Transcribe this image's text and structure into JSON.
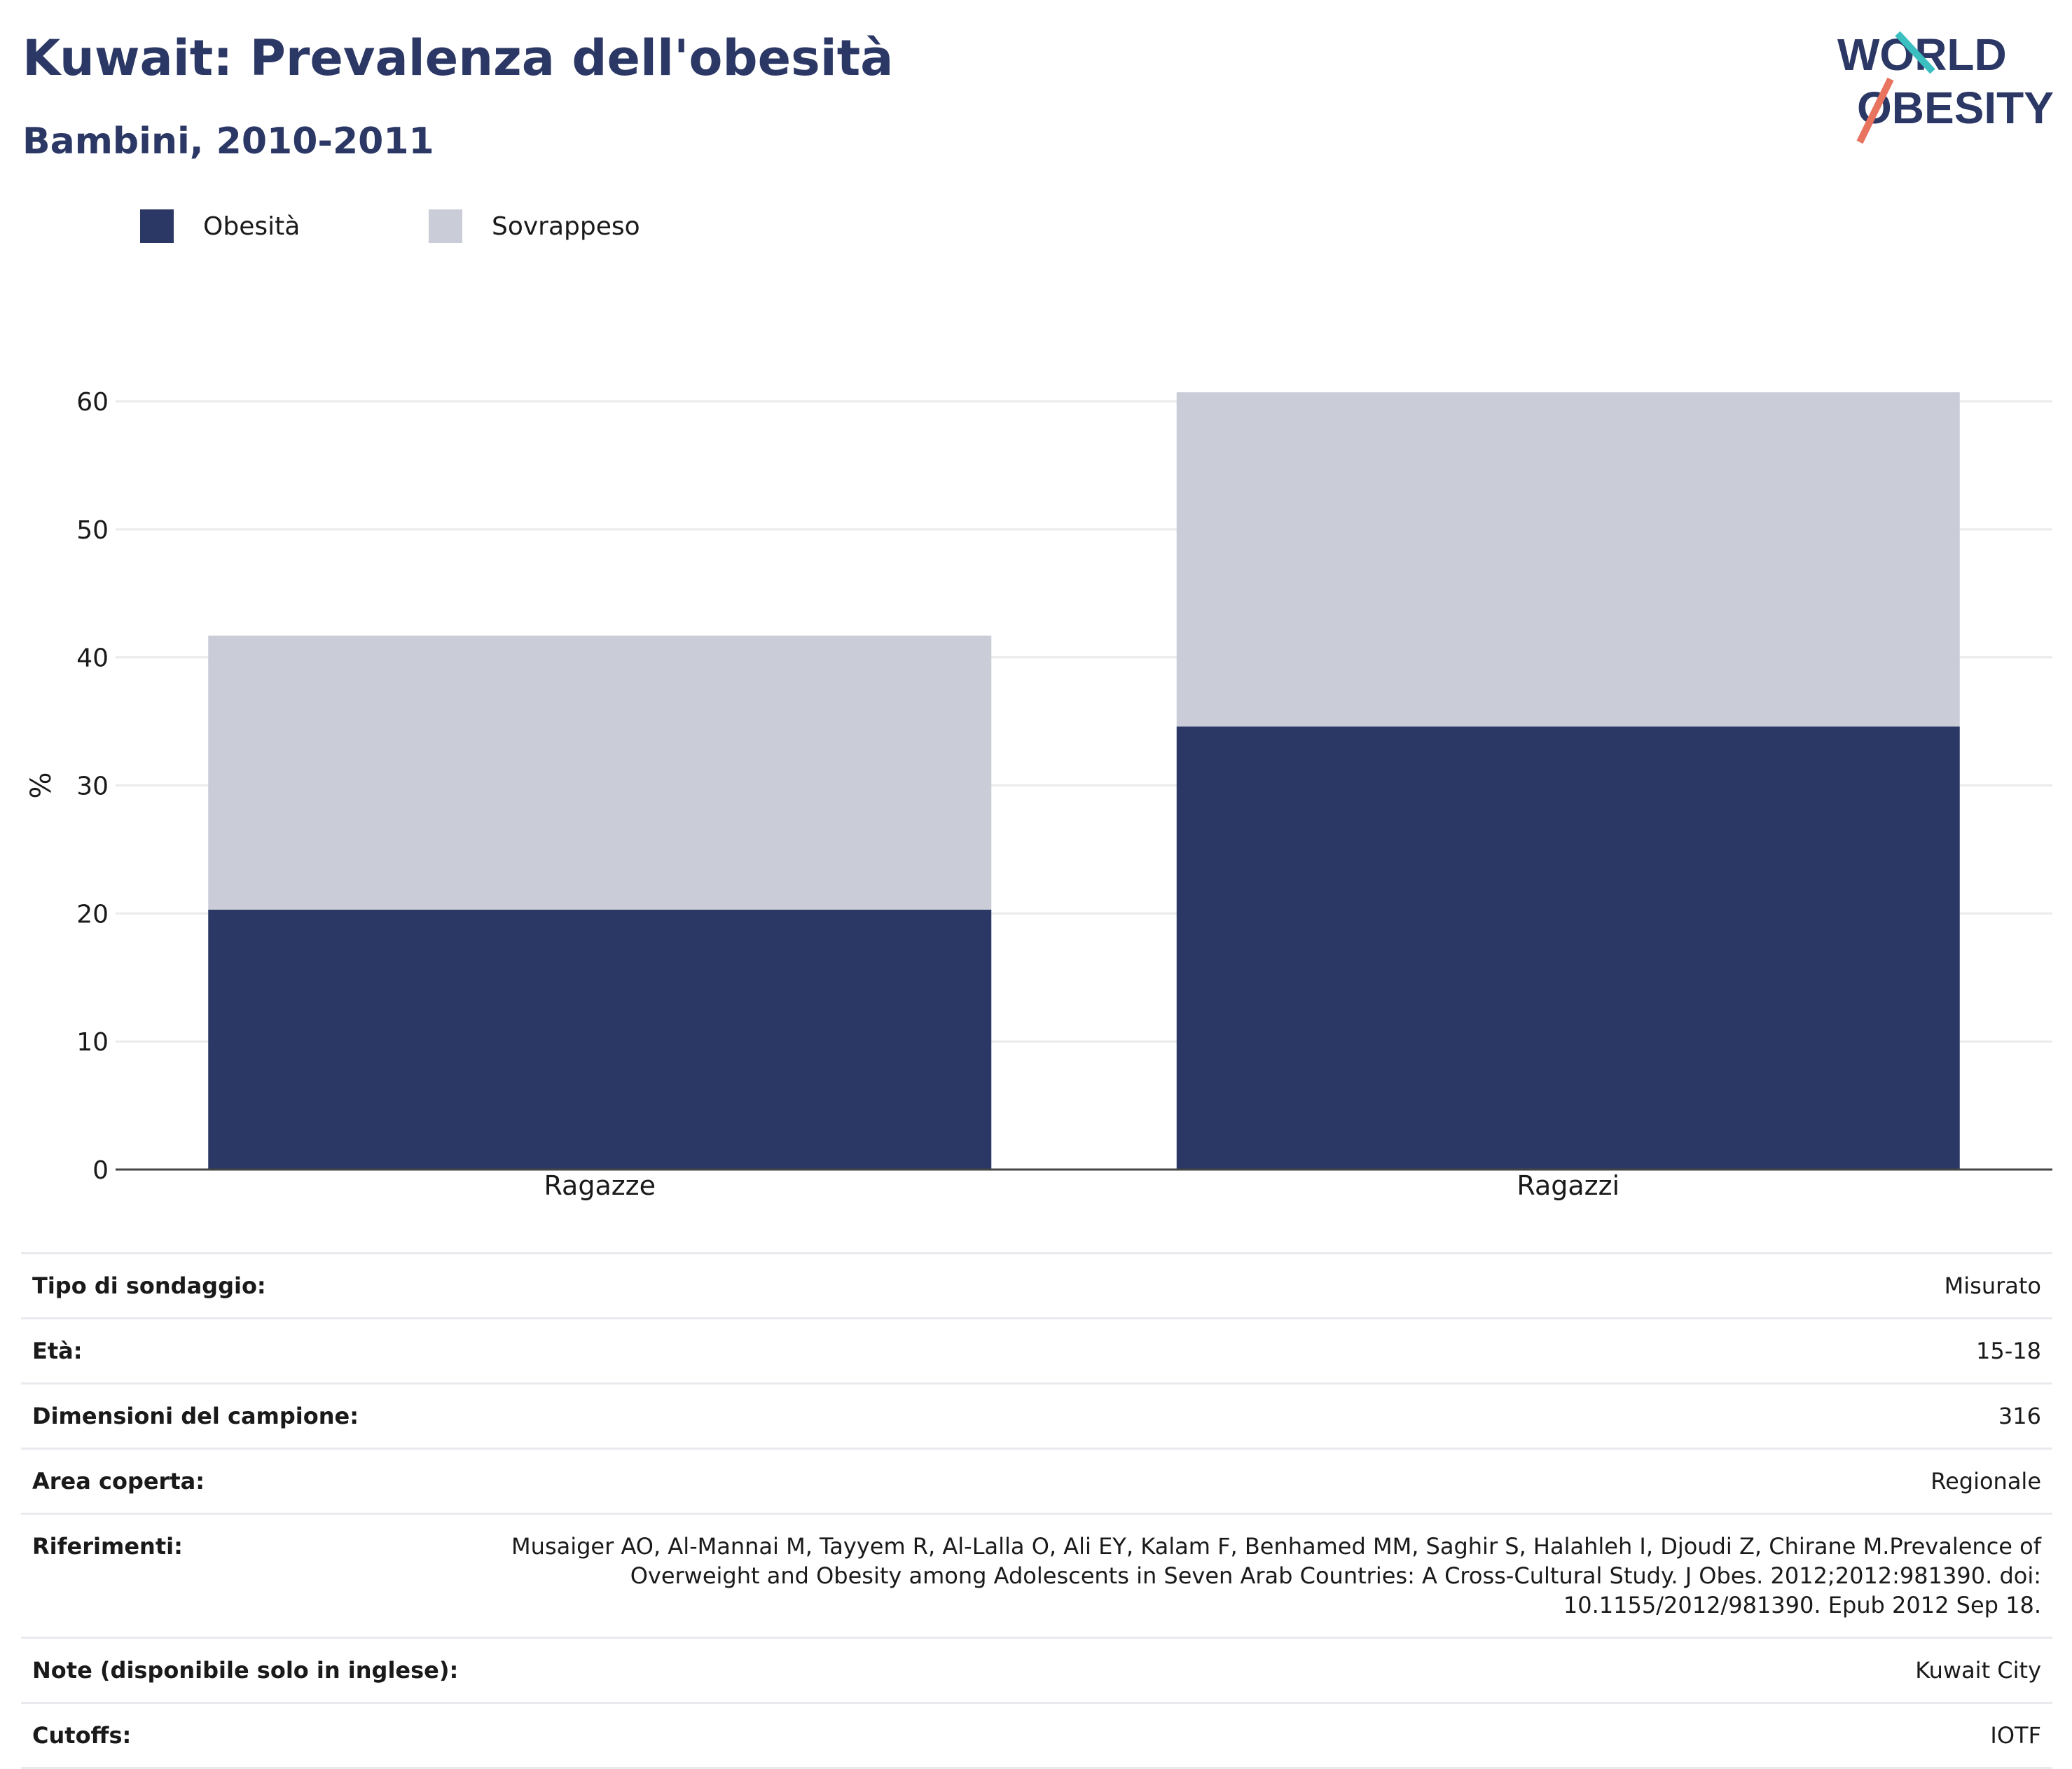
{
  "header": {
    "title": "Kuwait: Prevalenza dell'obesità",
    "subtitle": "Bambini, 2010-2011"
  },
  "logo": {
    "line1": "WORLD",
    "line2": "OBESITY"
  },
  "colors": {
    "obesity": "#2b3764",
    "overweight": "#caccd8",
    "grid": "#ebebeb",
    "axis": "#444444",
    "title": "#2b3764"
  },
  "chart_data": {
    "type": "bar",
    "stacked": true,
    "categories": [
      "Ragazze",
      "Ragazzi"
    ],
    "series": [
      {
        "name": "Obesità",
        "values": [
          20.3,
          34.6
        ]
      },
      {
        "name": "Sovrappeso",
        "values": [
          21.4,
          26.1
        ]
      }
    ],
    "xlabel": "",
    "ylabel": "%",
    "ylim": [
      0,
      60
    ],
    "yticks": [
      0,
      10,
      20,
      30,
      40,
      50,
      60
    ],
    "grid": true,
    "legend_position": "top-left"
  },
  "info_table": [
    {
      "label": "Tipo di sondaggio:",
      "value": "Misurato"
    },
    {
      "label": "Età:",
      "value": "15-18"
    },
    {
      "label": "Dimensioni del campione:",
      "value": "316"
    },
    {
      "label": "Area coperta:",
      "value": "Regionale"
    },
    {
      "label": "Riferimenti:",
      "value": "Musaiger AO, Al-Mannai M, Tayyem R, Al-Lalla O, Ali EY, Kalam F, Benhamed MM, Saghir S, Halahleh I, Djoudi Z, Chirane M.Prevalence of Overweight and Obesity among Adolescents in Seven Arab Countries: A Cross-Cultural Study. J Obes. 2012;2012:981390. doi: 10.1155/2012/981390. Epub 2012 Sep 18."
    },
    {
      "label": "Note (disponibile solo in inglese):",
      "value": "Kuwait City"
    },
    {
      "label": "Cutoffs:",
      "value": "IOTF"
    }
  ]
}
